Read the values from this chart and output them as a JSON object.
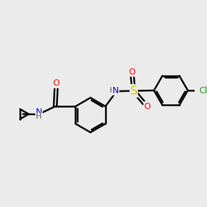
{
  "bg_color": "#ebebeb",
  "bond_color": "#000000",
  "bond_width": 1.8,
  "atom_colors": {
    "O": "#ff0000",
    "N": "#0000cc",
    "S": "#cccc00",
    "Cl": "#00aa00",
    "C": "#000000",
    "H": "#808080"
  },
  "font_size": 9,
  "small_font_size": 8
}
